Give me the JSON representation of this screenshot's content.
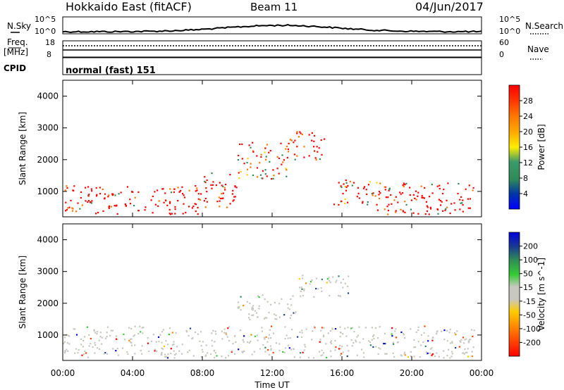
{
  "header": {
    "station": "Hokkaido East (fitACF)",
    "beam": "Beam 11",
    "date": "04/Jun/2017"
  },
  "strip_labels": {
    "nsky": "N.Sky",
    "freq_line1": "Freq.",
    "freq_line2": "[MHz]",
    "cpid": "CPID",
    "nsearch": "N.Search",
    "nave": "Nave",
    "cpid_text": "normal (fast) 151"
  },
  "strip_ticks": {
    "noise_top": "10^5",
    "noise_bottom": "10^0",
    "noise_right_top": "10^5",
    "noise_right_bottom": "10^0",
    "freq_top": "18",
    "freq_bottom": "8",
    "nave_top": "60",
    "nave_bottom": "0"
  },
  "chart_data": [
    {
      "type": "heatmap",
      "name": "power",
      "ylabel": "Slant Range [km]",
      "ylim": [
        200,
        4500
      ],
      "yticks": [
        1000,
        2000,
        3000,
        4000
      ],
      "xticks": [
        "00:00",
        "04:00",
        "08:00",
        "12:00",
        "16:00",
        "20:00",
        "00:00"
      ],
      "colorbar": {
        "label": "Power [dB]",
        "ticks": [
          "28",
          "24",
          "20",
          "16",
          "12",
          "8",
          "4"
        ],
        "colors": [
          "#ff0000",
          "#ff3300",
          "#ff7700",
          "#ffaa00",
          "#ffd200",
          "#ffee00",
          "#2e8b57",
          "#3a9a6a",
          "#0033aa",
          "#0000ff"
        ]
      },
      "echo_regions": [
        {
          "t0": 0.0,
          "t1": 4.0,
          "r0": 300,
          "r1": 1200,
          "level": "high"
        },
        {
          "t0": 4.0,
          "t1": 8.0,
          "r0": 300,
          "r1": 1200,
          "level": "high"
        },
        {
          "t0": 8.0,
          "t1": 10.0,
          "r0": 500,
          "r1": 1600,
          "level": "high"
        },
        {
          "t0": 10.0,
          "t1": 13.0,
          "r0": 1400,
          "r1": 2600,
          "level": "mid"
        },
        {
          "t0": 13.0,
          "t1": 15.0,
          "r0": 2000,
          "r1": 2900,
          "level": "high"
        },
        {
          "t0": 15.5,
          "t1": 18.0,
          "r0": 600,
          "r1": 1400,
          "level": "mid"
        },
        {
          "t0": 18.0,
          "t1": 23.6,
          "r0": 300,
          "r1": 1300,
          "level": "high"
        }
      ]
    },
    {
      "type": "heatmap",
      "name": "velocity",
      "xlabel": "Time UT",
      "ylabel": "Slant Range [km]",
      "ylim": [
        200,
        4500
      ],
      "yticks": [
        1000,
        2000,
        3000,
        4000
      ],
      "xticks": [
        "00:00",
        "04:00",
        "08:00",
        "12:00",
        "16:00",
        "20:00",
        "00:00"
      ],
      "colorbar": {
        "label": "Velocity [m s^-1]",
        "ticks": [
          "200",
          "100",
          "50",
          "15",
          "-15",
          "-50",
          "-100",
          "-200"
        ],
        "colors": [
          "#0000dd",
          "#1a3d8f",
          "#2e8b57",
          "#33cc33",
          "#c8c8c0",
          "#ffcc00",
          "#ff8800",
          "#ff4400",
          "#ff0000"
        ]
      },
      "echo_regions": [
        {
          "t0": 0.0,
          "t1": 23.6,
          "r0": 300,
          "r1": 1300,
          "level": "ground"
        },
        {
          "t0": 10.0,
          "t1": 13.5,
          "r0": 1500,
          "r1": 2300,
          "level": "ground"
        },
        {
          "t0": 13.5,
          "t1": 16.5,
          "r0": 2200,
          "r1": 2900,
          "level": "ground"
        }
      ]
    }
  ]
}
